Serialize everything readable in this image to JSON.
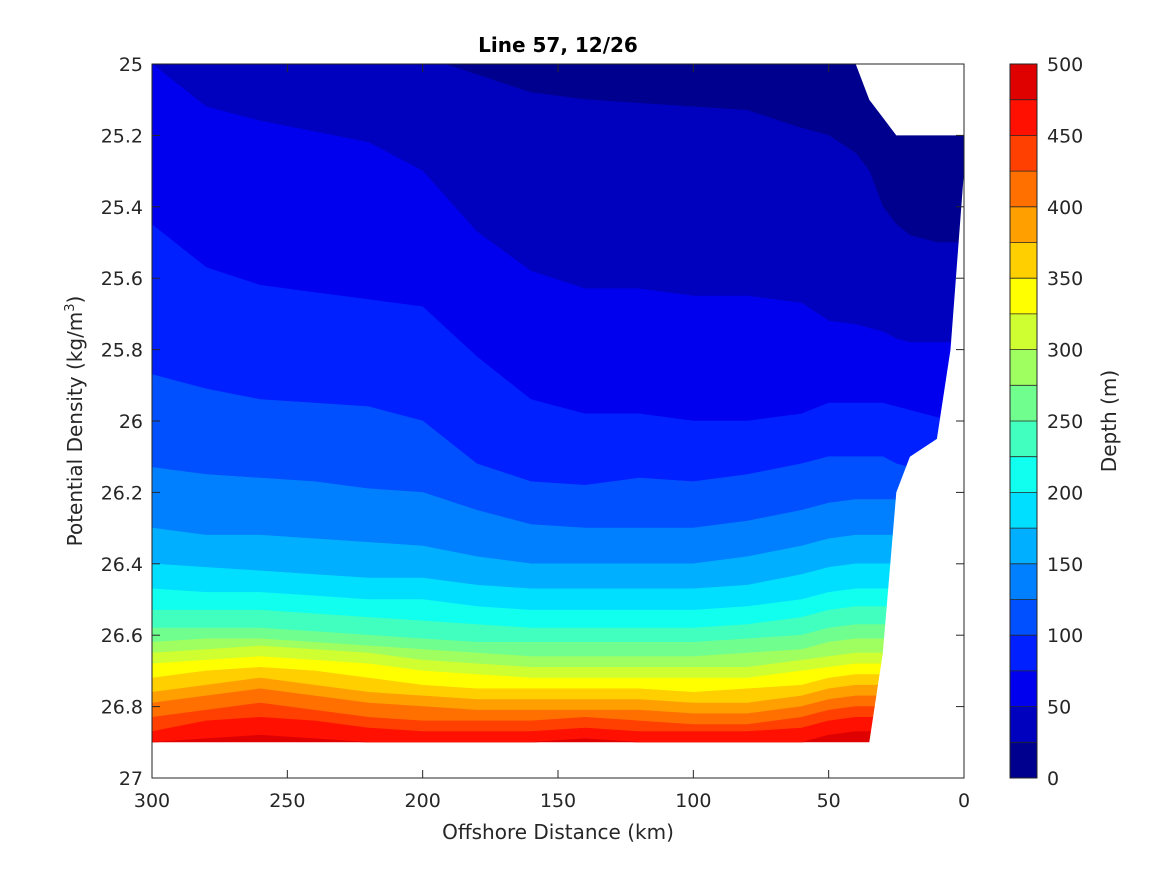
{
  "chart_data": {
    "type": "filled-contour",
    "title": "Line 57, 12/26",
    "xlabel": "Offshore Distance (km)",
    "ylabel_main": "Potential Density (kg/m",
    "ylabel_sup": "3",
    "ylabel_close": ")",
    "x_reversed": true,
    "y_reversed": true,
    "xlim": [
      0,
      300
    ],
    "ylim": [
      25,
      27
    ],
    "x_ticks": [
      300,
      250,
      200,
      150,
      100,
      50,
      0
    ],
    "y_ticks": [
      25,
      25.2,
      25.4,
      25.6,
      25.8,
      26,
      26.2,
      26.4,
      26.6,
      26.8,
      27
    ],
    "y_tick_labels": [
      "25",
      "25.2",
      "25.4",
      "25.6",
      "25.8",
      "26",
      "26.2",
      "26.4",
      "26.6",
      "26.8",
      "27"
    ],
    "grid": false,
    "colorbar": {
      "label": "Depth (m)",
      "range": [
        0,
        500
      ],
      "ticks": [
        0,
        50,
        100,
        150,
        200,
        250,
        300,
        350,
        400,
        450,
        500
      ],
      "levels": [
        0,
        25,
        50,
        75,
        100,
        125,
        150,
        175,
        200,
        225,
        250,
        275,
        300,
        325,
        350,
        375,
        400,
        425,
        450,
        475,
        500
      ],
      "colors": [
        "#00008f",
        "#0000bf",
        "#0000ef",
        "#0020ff",
        "#0050ff",
        "#0080ff",
        "#00afff",
        "#00dfff",
        "#10ffef",
        "#40ffbf",
        "#70ff8f",
        "#9fff60",
        "#cfff30",
        "#ffff00",
        "#ffcf00",
        "#ff9f00",
        "#ff7000",
        "#ff4000",
        "#ff1000",
        "#df0000"
      ]
    },
    "x_positions": [
      300,
      280,
      260,
      240,
      220,
      200,
      180,
      160,
      140,
      120,
      100,
      80,
      60,
      50,
      40,
      35,
      30,
      25,
      20,
      10,
      5,
      0
    ],
    "max_density": [
      26.9,
      26.9,
      26.9,
      26.9,
      26.9,
      26.9,
      26.9,
      26.9,
      26.9,
      26.9,
      26.9,
      26.9,
      26.9,
      26.9,
      26.9,
      26.9,
      26.65,
      26.2,
      26.1,
      26.05,
      25.8,
      25.3
    ],
    "min_density": [
      25,
      25,
      25,
      25,
      25,
      25,
      25,
      25,
      25,
      25,
      25,
      25,
      25,
      25,
      25,
      25.1,
      25.15,
      25.2,
      25.2,
      25.2,
      25.2,
      25.2
    ],
    "contours": [
      {
        "depth": 25,
        "density": [
          24.95,
          24.98,
          25.0,
          24.98,
          24.98,
          24.98,
          25.03,
          25.08,
          25.1,
          25.11,
          25.12,
          25.13,
          25.18,
          25.2,
          25.25,
          25.3,
          25.4,
          25.45,
          25.48,
          25.5,
          25.5,
          25.5
        ]
      },
      {
        "depth": 50,
        "density": [
          25.0,
          25.12,
          25.16,
          25.19,
          25.22,
          25.3,
          25.47,
          25.58,
          25.63,
          25.63,
          25.65,
          25.65,
          25.67,
          25.72,
          25.73,
          25.74,
          25.75,
          25.77,
          25.78,
          25.78,
          25.78,
          25.78
        ]
      },
      {
        "depth": 75,
        "density": [
          25.45,
          25.57,
          25.62,
          25.64,
          25.66,
          25.68,
          25.82,
          25.94,
          25.98,
          25.98,
          26.0,
          26.0,
          25.98,
          25.95,
          25.95,
          25.95,
          25.95,
          25.96,
          25.97,
          25.99,
          26.0,
          26.0
        ]
      },
      {
        "depth": 100,
        "density": [
          25.87,
          25.91,
          25.94,
          25.95,
          25.96,
          26.0,
          26.12,
          26.17,
          26.18,
          26.16,
          26.17,
          26.15,
          26.12,
          26.1,
          26.1,
          26.1,
          26.1,
          26.12,
          26.13,
          26.14,
          26.14,
          26.14
        ]
      },
      {
        "depth": 125,
        "density": [
          26.13,
          26.15,
          26.16,
          26.17,
          26.19,
          26.2,
          26.25,
          26.29,
          26.3,
          26.3,
          26.3,
          26.28,
          26.25,
          26.23,
          26.22,
          26.22,
          26.22,
          26.22,
          26.22,
          26.22,
          26.22,
          26.22
        ]
      },
      {
        "depth": 150,
        "density": [
          26.3,
          26.32,
          26.32,
          26.33,
          26.34,
          26.35,
          26.38,
          26.4,
          26.4,
          26.4,
          26.4,
          26.38,
          26.35,
          26.33,
          26.32,
          26.32,
          26.32,
          26.32,
          26.32,
          26.32,
          26.32,
          26.32
        ]
      },
      {
        "depth": 175,
        "density": [
          26.4,
          26.41,
          26.42,
          26.43,
          26.44,
          26.44,
          26.46,
          26.47,
          26.47,
          26.47,
          26.47,
          26.46,
          26.43,
          26.41,
          26.4,
          26.4,
          26.4,
          26.4,
          26.4,
          26.4,
          26.4,
          26.4
        ]
      },
      {
        "depth": 200,
        "density": [
          26.47,
          26.48,
          26.48,
          26.49,
          26.5,
          26.5,
          26.52,
          26.53,
          26.53,
          26.53,
          26.53,
          26.52,
          26.5,
          26.48,
          26.47,
          26.47,
          26.47,
          26.47,
          26.47,
          26.47,
          26.47,
          26.47
        ]
      },
      {
        "depth": 225,
        "density": [
          26.53,
          26.53,
          26.53,
          26.54,
          26.55,
          26.56,
          26.57,
          26.58,
          26.58,
          26.58,
          26.58,
          26.57,
          26.55,
          26.53,
          26.52,
          26.52,
          26.52,
          26.52,
          26.52,
          26.52,
          26.52,
          26.52
        ]
      },
      {
        "depth": 250,
        "density": [
          26.58,
          26.58,
          26.58,
          26.59,
          26.6,
          26.61,
          26.62,
          26.62,
          26.62,
          26.62,
          26.62,
          26.61,
          26.6,
          26.58,
          26.57,
          26.57,
          26.57,
          26.57,
          26.57,
          26.57,
          26.57,
          26.57
        ]
      },
      {
        "depth": 275,
        "density": [
          26.62,
          26.61,
          26.61,
          26.62,
          26.63,
          26.64,
          26.65,
          26.66,
          26.66,
          26.66,
          26.66,
          26.65,
          26.64,
          26.62,
          26.61,
          26.61,
          26.61,
          26.61,
          26.61,
          26.61,
          26.61,
          26.61
        ]
      },
      {
        "depth": 300,
        "density": [
          26.65,
          26.64,
          26.63,
          26.64,
          26.65,
          26.67,
          26.68,
          26.69,
          26.69,
          26.69,
          26.69,
          26.69,
          26.67,
          26.66,
          26.65,
          26.65,
          26.65,
          26.65,
          26.65,
          26.65,
          26.65,
          26.65
        ]
      },
      {
        "depth": 325,
        "density": [
          26.68,
          26.67,
          26.66,
          26.67,
          26.68,
          26.7,
          26.71,
          26.72,
          26.72,
          26.72,
          26.72,
          26.72,
          26.7,
          26.69,
          26.68,
          26.68,
          26.68,
          26.68,
          26.68,
          26.68,
          26.68,
          26.68
        ]
      },
      {
        "depth": 350,
        "density": [
          26.72,
          26.7,
          26.69,
          26.7,
          26.72,
          26.74,
          26.75,
          26.75,
          26.75,
          26.75,
          26.76,
          26.75,
          26.74,
          26.72,
          26.71,
          26.71,
          26.71,
          26.71,
          26.71,
          26.71,
          26.71,
          26.71
        ]
      },
      {
        "depth": 375,
        "density": [
          26.76,
          26.74,
          26.72,
          26.74,
          26.76,
          26.77,
          26.78,
          26.78,
          26.78,
          26.78,
          26.79,
          26.79,
          26.77,
          26.75,
          26.74,
          26.74,
          26.74,
          26.74,
          26.74,
          26.74,
          26.74,
          26.74
        ]
      },
      {
        "depth": 400,
        "density": [
          26.79,
          26.77,
          26.75,
          26.77,
          26.79,
          26.8,
          26.81,
          26.81,
          26.81,
          26.81,
          26.82,
          26.82,
          26.8,
          26.78,
          26.77,
          26.77,
          26.77,
          26.77,
          26.77,
          26.77,
          26.77,
          26.77
        ]
      },
      {
        "depth": 425,
        "density": [
          26.83,
          26.81,
          26.79,
          26.81,
          26.83,
          26.84,
          26.84,
          26.84,
          26.83,
          26.84,
          26.85,
          26.85,
          26.83,
          26.81,
          26.8,
          26.8,
          26.8,
          26.8,
          26.8,
          26.8,
          26.8,
          26.8
        ]
      },
      {
        "depth": 450,
        "density": [
          26.87,
          26.84,
          26.83,
          26.84,
          26.86,
          26.87,
          26.87,
          26.87,
          26.86,
          26.87,
          26.87,
          26.87,
          26.86,
          26.84,
          26.83,
          26.83,
          26.83,
          26.83,
          26.83,
          26.83,
          26.83,
          26.83
        ]
      },
      {
        "depth": 475,
        "density": [
          26.9,
          26.89,
          26.88,
          26.89,
          26.9,
          26.9,
          26.9,
          26.9,
          26.89,
          26.9,
          26.9,
          26.9,
          26.9,
          26.88,
          26.87,
          26.87,
          26.87,
          26.87,
          26.87,
          26.87,
          26.87,
          26.87
        ]
      }
    ]
  }
}
